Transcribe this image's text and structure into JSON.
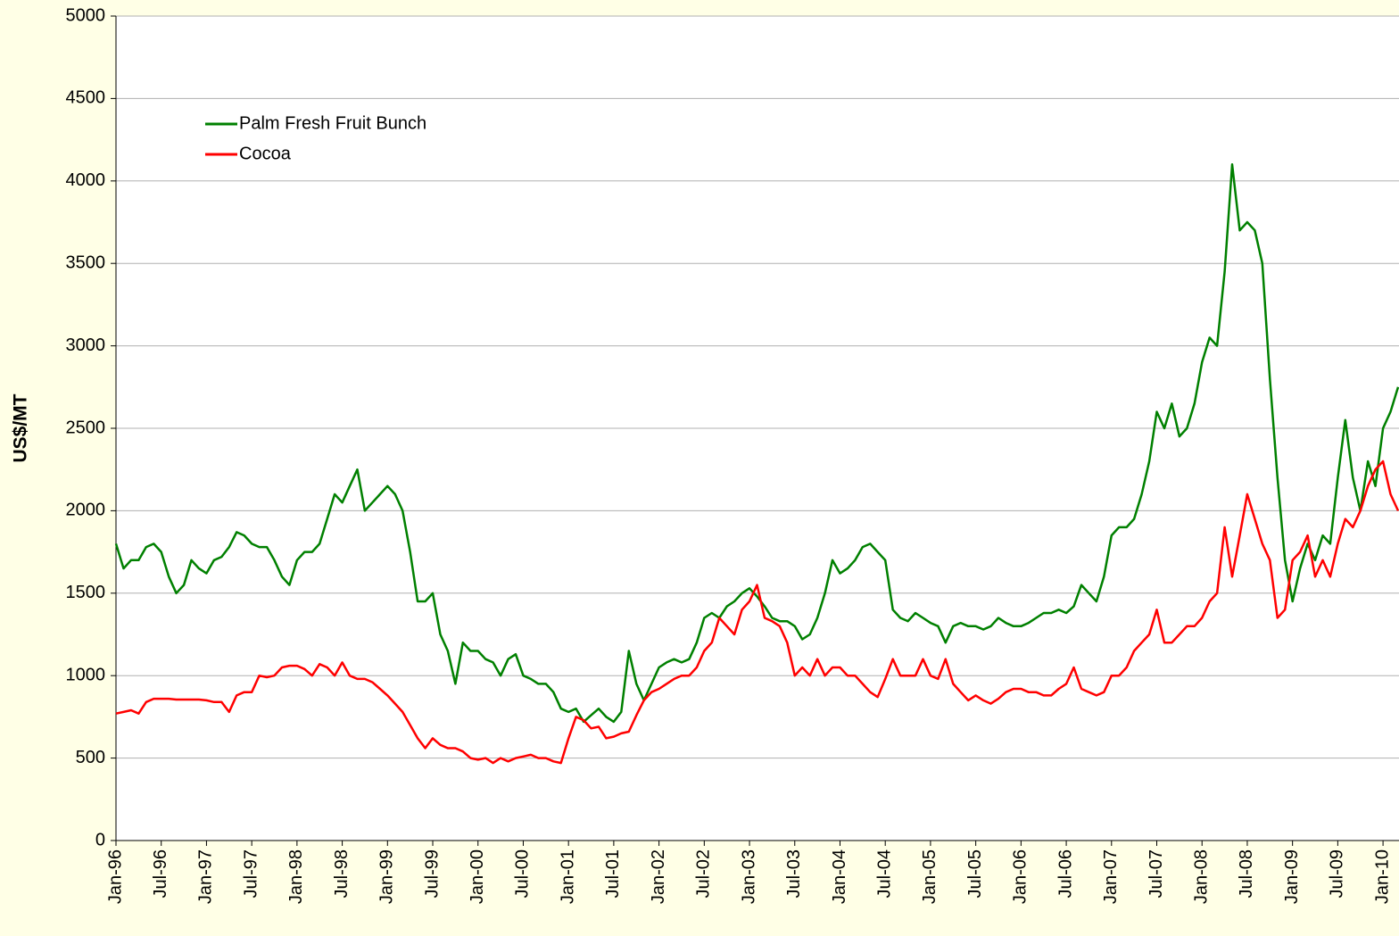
{
  "chart_data": {
    "type": "line",
    "y_label": "US$/MT",
    "x": [
      "1996-01",
      "1996-02",
      "1996-03",
      "1996-04",
      "1996-05",
      "1996-06",
      "1996-07",
      "1996-08",
      "1996-09",
      "1996-10",
      "1996-11",
      "1996-12",
      "1997-01",
      "1997-02",
      "1997-03",
      "1997-04",
      "1997-05",
      "1997-06",
      "1997-07",
      "1997-08",
      "1997-09",
      "1997-10",
      "1997-11",
      "1997-12",
      "1998-01",
      "1998-02",
      "1998-03",
      "1998-04",
      "1998-05",
      "1998-06",
      "1998-07",
      "1998-08",
      "1998-09",
      "1998-10",
      "1998-11",
      "1998-12",
      "1999-01",
      "1999-02",
      "1999-03",
      "1999-04",
      "1999-05",
      "1999-06",
      "1999-07",
      "1999-08",
      "1999-09",
      "1999-10",
      "1999-11",
      "1999-12",
      "2000-01",
      "2000-02",
      "2000-03",
      "2000-04",
      "2000-05",
      "2000-06",
      "2000-07",
      "2000-08",
      "2000-09",
      "2000-10",
      "2000-11",
      "2000-12",
      "2001-01",
      "2001-02",
      "2001-03",
      "2001-04",
      "2001-05",
      "2001-06",
      "2001-07",
      "2001-08",
      "2001-09",
      "2001-10",
      "2001-11",
      "2001-12",
      "2002-01",
      "2002-02",
      "2002-03",
      "2002-04",
      "2002-05",
      "2002-06",
      "2002-07",
      "2002-08",
      "2002-09",
      "2002-10",
      "2002-11",
      "2002-12",
      "2003-01",
      "2003-02",
      "2003-03",
      "2003-04",
      "2003-05",
      "2003-06",
      "2003-07",
      "2003-08",
      "2003-09",
      "2003-10",
      "2003-11",
      "2003-12",
      "2004-01",
      "2004-02",
      "2004-03",
      "2004-04",
      "2004-05",
      "2004-06",
      "2004-07",
      "2004-08",
      "2004-09",
      "2004-10",
      "2004-11",
      "2004-12",
      "2005-01",
      "2005-02",
      "2005-03",
      "2005-04",
      "2005-05",
      "2005-06",
      "2005-07",
      "2005-08",
      "2005-09",
      "2005-10",
      "2005-11",
      "2005-12",
      "2006-01",
      "2006-02",
      "2006-03",
      "2006-04",
      "2006-05",
      "2006-06",
      "2006-07",
      "2006-08",
      "2006-09",
      "2006-10",
      "2006-11",
      "2006-12",
      "2007-01",
      "2007-02",
      "2007-03",
      "2007-04",
      "2007-05",
      "2007-06",
      "2007-07",
      "2007-08",
      "2007-09",
      "2007-10",
      "2007-11",
      "2007-12",
      "2008-01",
      "2008-02",
      "2008-03",
      "2008-04",
      "2008-05",
      "2008-06",
      "2008-07",
      "2008-08",
      "2008-09",
      "2008-10",
      "2008-11",
      "2008-12",
      "2009-01",
      "2009-02",
      "2009-03",
      "2009-04",
      "2009-05",
      "2009-06",
      "2009-07",
      "2009-08",
      "2009-09",
      "2009-10",
      "2009-11",
      "2009-12",
      "2010-01",
      "2010-02",
      "2010-03"
    ],
    "series": [
      {
        "name": "Palm Fresh Fruit Bunch",
        "color": "#008000",
        "values": [
          1800,
          1650,
          1700,
          1700,
          1780,
          1800,
          1750,
          1600,
          1500,
          1550,
          1700,
          1650,
          1620,
          1700,
          1720,
          1780,
          1870,
          1850,
          1800,
          1780,
          1780,
          1700,
          1600,
          1550,
          1700,
          1750,
          1750,
          1800,
          1950,
          2100,
          2050,
          2150,
          2250,
          2000,
          2050,
          2100,
          2150,
          2100,
          2000,
          1750,
          1450,
          1450,
          1500,
          1250,
          1150,
          950,
          1200,
          1150,
          1150,
          1100,
          1080,
          1000,
          1100,
          1130,
          1000,
          980,
          950,
          950,
          900,
          800,
          780,
          800,
          720,
          760,
          800,
          750,
          720,
          780,
          1150,
          950,
          850,
          950,
          1050,
          1080,
          1100,
          1080,
          1100,
          1200,
          1350,
          1380,
          1350,
          1420,
          1450,
          1500,
          1530,
          1480,
          1420,
          1350,
          1330,
          1330,
          1300,
          1220,
          1250,
          1350,
          1500,
          1700,
          1620,
          1650,
          1700,
          1780,
          1800,
          1750,
          1700,
          1400,
          1350,
          1330,
          1380,
          1350,
          1320,
          1300,
          1200,
          1300,
          1320,
          1300,
          1300,
          1280,
          1300,
          1350,
          1320,
          1300,
          1300,
          1320,
          1350,
          1380,
          1380,
          1400,
          1380,
          1420,
          1550,
          1500,
          1450,
          1600,
          1850,
          1900,
          1900,
          1950,
          2100,
          2300,
          2600,
          2500,
          2650,
          2450,
          2500,
          2650,
          2900,
          3050,
          3000,
          3450,
          4100,
          3700,
          3750,
          3700,
          3500,
          2800,
          2200,
          1700,
          1450,
          1650,
          1800,
          1700,
          1850,
          1800,
          2200,
          2550,
          2200,
          2000,
          2300,
          2150,
          2500,
          2600,
          2750
        ]
      },
      {
        "name": "Cocoa",
        "color": "#ff0000",
        "values": [
          770,
          780,
          790,
          770,
          840,
          860,
          860,
          860,
          855,
          855,
          855,
          855,
          850,
          840,
          840,
          780,
          880,
          900,
          900,
          1000,
          990,
          1000,
          1050,
          1060,
          1060,
          1040,
          1000,
          1070,
          1050,
          1000,
          1080,
          1000,
          980,
          980,
          960,
          920,
          880,
          830,
          780,
          700,
          620,
          560,
          620,
          580,
          560,
          560,
          540,
          500,
          490,
          500,
          470,
          500,
          480,
          500,
          510,
          520,
          500,
          500,
          480,
          470,
          620,
          750,
          730,
          680,
          690,
          620,
          630,
          650,
          660,
          760,
          850,
          900,
          920,
          950,
          980,
          1000,
          1000,
          1050,
          1150,
          1200,
          1350,
          1300,
          1250,
          1400,
          1450,
          1550,
          1350,
          1330,
          1300,
          1200,
          1000,
          1050,
          1000,
          1100,
          1000,
          1050,
          1050,
          1000,
          1000,
          950,
          900,
          870,
          980,
          1100,
          1000,
          1000,
          1000,
          1100,
          1000,
          980,
          1100,
          950,
          900,
          850,
          880,
          850,
          830,
          860,
          900,
          920,
          920,
          900,
          900,
          880,
          880,
          920,
          950,
          1050,
          920,
          900,
          880,
          900,
          1000,
          1000,
          1050,
          1150,
          1200,
          1250,
          1400,
          1200,
          1200,
          1250,
          1300,
          1300,
          1350,
          1450,
          1500,
          1900,
          1600,
          1850,
          2100,
          1950,
          1800,
          1700,
          1350,
          1400,
          1700,
          1750,
          1850,
          1600,
          1700,
          1600,
          1800,
          1950,
          1900,
          2000,
          2150,
          2250,
          2300,
          2100,
          2000
        ]
      }
    ],
    "xlim": [
      "1996-01",
      "2010-03"
    ],
    "xticks": [
      {
        "value": "1996-01",
        "label": "Jan-96"
      },
      {
        "value": "1996-07",
        "label": "Jul-96"
      },
      {
        "value": "1997-01",
        "label": "Jan-97"
      },
      {
        "value": "1997-07",
        "label": "Jul-97"
      },
      {
        "value": "1998-01",
        "label": "Jan-98"
      },
      {
        "value": "1998-07",
        "label": "Jul-98"
      },
      {
        "value": "1999-01",
        "label": "Jan-99"
      },
      {
        "value": "1999-07",
        "label": "Jul-99"
      },
      {
        "value": "2000-01",
        "label": "Jan-00"
      },
      {
        "value": "2000-07",
        "label": "Jul-00"
      },
      {
        "value": "2001-01",
        "label": "Jan-01"
      },
      {
        "value": "2001-07",
        "label": "Jul-01"
      },
      {
        "value": "2002-01",
        "label": "Jan-02"
      },
      {
        "value": "2002-07",
        "label": "Jul-02"
      },
      {
        "value": "2003-01",
        "label": "Jan-03"
      },
      {
        "value": "2003-07",
        "label": "Jul-03"
      },
      {
        "value": "2004-01",
        "label": "Jan-04"
      },
      {
        "value": "2004-07",
        "label": "Jul-04"
      },
      {
        "value": "2005-01",
        "label": "Jan-05"
      },
      {
        "value": "2005-07",
        "label": "Jul-05"
      },
      {
        "value": "2006-01",
        "label": "Jan-06"
      },
      {
        "value": "2006-07",
        "label": "Jul-06"
      },
      {
        "value": "2007-01",
        "label": "Jan-07"
      },
      {
        "value": "2007-07",
        "label": "Jul-07"
      },
      {
        "value": "2008-01",
        "label": "Jan-08"
      },
      {
        "value": "2008-07",
        "label": "Jul-08"
      },
      {
        "value": "2009-01",
        "label": "Jan-09"
      },
      {
        "value": "2009-07",
        "label": "Jul-09"
      },
      {
        "value": "2010-01",
        "label": "Jan-10"
      }
    ],
    "ylim": [
      0,
      5000
    ],
    "yticks": [
      0,
      500,
      1000,
      1500,
      2000,
      2500,
      3000,
      3500,
      4000,
      4500,
      5000
    ],
    "grid": true,
    "legend": "upper-left"
  }
}
